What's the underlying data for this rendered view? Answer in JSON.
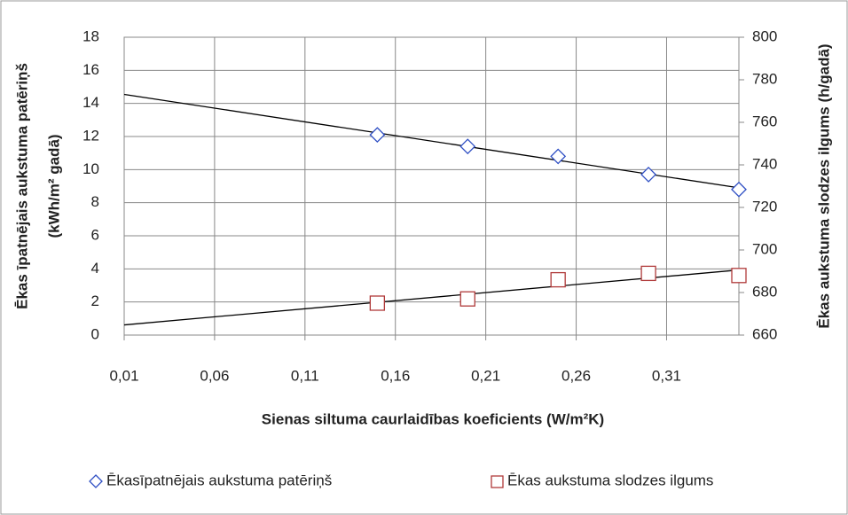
{
  "chart_data": {
    "type": "scatter",
    "xlabel": "Sienas siltuma caurlaidības koeficients (W/m²K)",
    "ylabel": [
      "Ēkas īpatnējais aukstuma patēriņš",
      "(kWh/m² gadā)"
    ],
    "y2label": "Ēkas aukstuma slodzes ilgums (h/gadā)",
    "x": [
      0.15,
      0.2,
      0.25,
      0.3,
      0.35
    ],
    "series": [
      {
        "name": "Ēkasīpatnējais aukstuma patēriņš",
        "color": "#2f4fc4",
        "marker": "diamond",
        "values": [
          12.1,
          11.4,
          10.8,
          9.7,
          8.8
        ]
      },
      {
        "name": "Ēkas aukstuma slodzes ilgums",
        "color": "#b03a3a",
        "marker": "square",
        "axis": "y2",
        "values": [
          675,
          677,
          686,
          689,
          688
        ]
      }
    ],
    "trendline": true,
    "xlim": [
      0.01,
      0.35
    ],
    "xticks": [
      {
        "value": 0.01,
        "label": "0,01"
      },
      {
        "value": 0.06,
        "label": "0,06"
      },
      {
        "value": 0.11,
        "label": "0,11"
      },
      {
        "value": 0.16,
        "label": "0,16"
      },
      {
        "value": 0.21,
        "label": "0,21"
      },
      {
        "value": 0.26,
        "label": "0,26"
      },
      {
        "value": 0.31,
        "label": "0,31"
      }
    ],
    "ylim": [
      0,
      18
    ],
    "yticks": [
      0,
      2,
      4,
      6,
      8,
      10,
      12,
      14,
      16,
      18
    ],
    "y2lim": [
      660,
      800
    ],
    "y2ticks": [
      660,
      680,
      700,
      720,
      740,
      760,
      780,
      800
    ],
    "grid": true,
    "legend": "bottom"
  }
}
